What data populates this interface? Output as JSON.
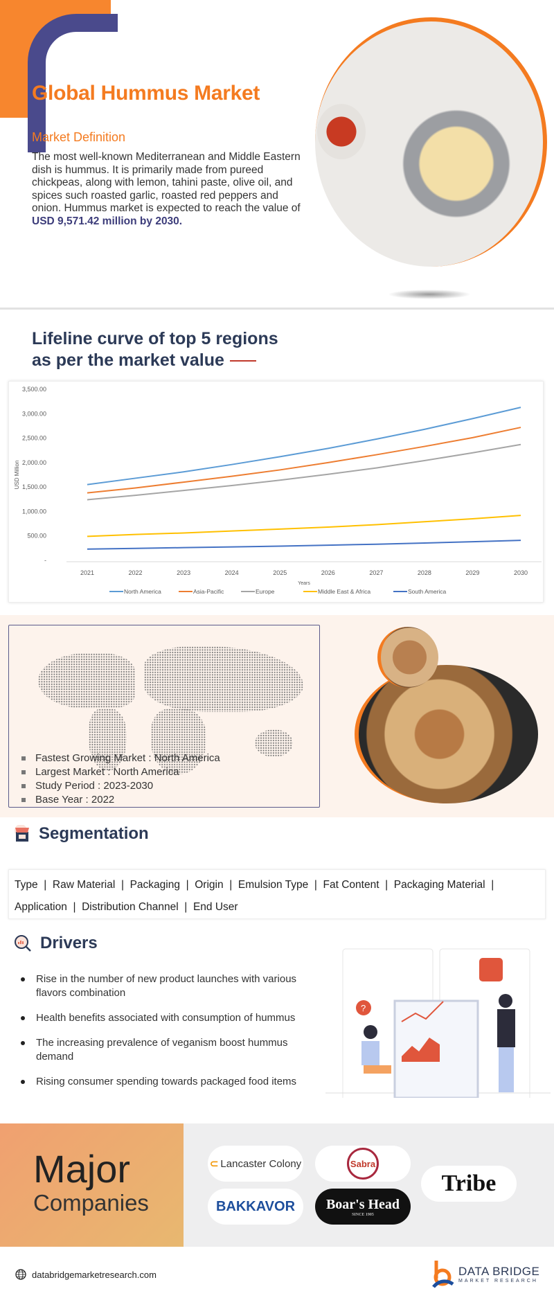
{
  "header": {
    "title": "Global Hummus Market",
    "definition_label": "Market Definition",
    "definition_text": "The most well-known Mediterranean and Middle Eastern dish is hummus. It is primarily made from pureed chickpeas, along with lemon, tahini paste, olive oil, and spices such roasted garlic, roasted red peppers and onion. Hummus market is expected to reach the value of ",
    "definition_highlight": "USD 9,571.42 million by 2030."
  },
  "chart_section": {
    "title_line1": "Lifeline curve of top 5 regions",
    "title_line2": "as per the market value"
  },
  "chart_data": {
    "type": "line",
    "title": "",
    "xlabel": "Years",
    "ylabel": "USD Million",
    "x": [
      2021,
      2022,
      2023,
      2024,
      2025,
      2026,
      2027,
      2028,
      2029,
      2030
    ],
    "ylim": [
      0,
      3500
    ],
    "yticks": [
      "-",
      "500.00",
      "1,000.00",
      "1,500.00",
      "2,000.00",
      "2,500.00",
      "3,000.00",
      "3,500.00"
    ],
    "ytick_values": [
      0,
      500,
      1000,
      1500,
      2000,
      2500,
      3000,
      3500
    ],
    "grid": false,
    "legend": "bottom",
    "series": [
      {
        "name": "North America",
        "color": "#5b9bd5",
        "values": [
          1550,
          1680,
          1810,
          1960,
          2120,
          2290,
          2480,
          2680,
          2900,
          3130
        ]
      },
      {
        "name": "Asia-Pacific",
        "color": "#ed7d31",
        "values": [
          1380,
          1480,
          1600,
          1720,
          1850,
          2000,
          2160,
          2330,
          2510,
          2720
        ]
      },
      {
        "name": "Europe",
        "color": "#a5a5a5",
        "values": [
          1240,
          1330,
          1430,
          1530,
          1640,
          1760,
          1890,
          2040,
          2200,
          2370
        ]
      },
      {
        "name": "Middle East & Africa",
        "color": "#ffc000",
        "values": [
          490,
          530,
          560,
          600,
          640,
          680,
          730,
          790,
          850,
          920
        ]
      },
      {
        "name": "South America",
        "color": "#4472c4",
        "values": [
          230,
          245,
          260,
          275,
          290,
          310,
          330,
          355,
          380,
          410
        ]
      }
    ]
  },
  "facts": [
    "Fastest Growing Market : North America",
    "Largest Market : North America",
    "Study Period : 2023-2030",
    "Base Year : 2022"
  ],
  "segmentation": {
    "title": "Segmentation",
    "items": [
      "Type",
      "Raw Material",
      "Packaging",
      "Origin",
      "Emulsion Type",
      "Fat Content",
      "Packaging Material",
      "Application",
      "Distribution Channel",
      "End User"
    ]
  },
  "drivers": {
    "title": "Drivers",
    "items": [
      "Rise in the number of new product launches with various flavors combination",
      "Health benefits associated with consumption of hummus",
      "The increasing prevalence of veganism boost  hummus demand",
      "Rising consumer spending towards packaged food items"
    ]
  },
  "companies": {
    "title_line1": "Major",
    "title_line2": "Companies",
    "logos": [
      "Lancaster Colony",
      "Sabra",
      "Tribe",
      "BAKKAVOR",
      "Boar's Head",
      "SINCE 1905"
    ]
  },
  "footer": {
    "website": "databridgemarketresearch.com",
    "brand_line1": "DATA BRIDGE",
    "brand_line2": "MARKET RESEARCH"
  },
  "colors": {
    "accent": "#f47b20",
    "navy": "#2c3a57",
    "purple": "#4a4a8c"
  }
}
